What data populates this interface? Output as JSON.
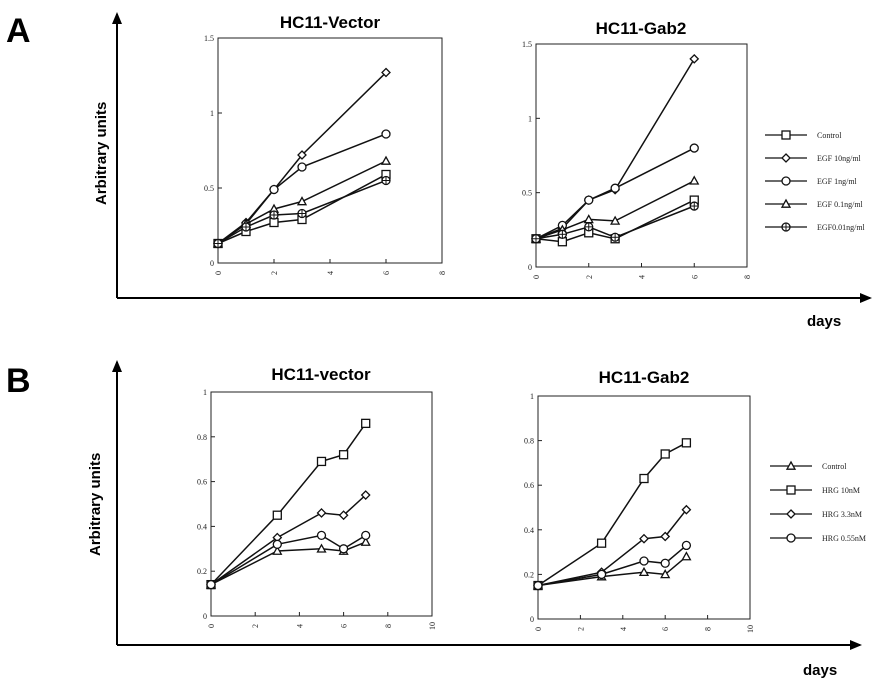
{
  "panels": [
    {
      "letter": "A",
      "ylabel": "Arbitrary  units",
      "xlabel": "days",
      "legend": [
        "Control",
        "EGF 10ng/ml",
        "EGF 1ng/ml",
        "EGF 0.1ng/ml",
        "EGF0.01ng/ml"
      ]
    },
    {
      "letter": "B",
      "ylabel": "Arbitrary  units",
      "xlabel": "days",
      "legend": [
        "Control",
        "HRG 10nM",
        "HRG 3.3nM",
        "HRG 0.55nM"
      ]
    }
  ],
  "chart_data": [
    {
      "type": "line",
      "title": "HC11-Vector",
      "xlim": [
        0,
        8
      ],
      "ylim": [
        0,
        1.5
      ],
      "xticks": [
        0,
        2,
        4,
        6,
        8
      ],
      "xtick_labels": [
        "0",
        "2",
        "4",
        "6",
        "8"
      ],
      "yticks": [
        0,
        0.5,
        1,
        1.5
      ],
      "ytick_labels": [
        "0",
        "0.5",
        "1",
        "1.5"
      ],
      "series": [
        {
          "name": "Control",
          "marker": "square",
          "x": [
            0,
            1,
            2,
            3,
            6
          ],
          "values": [
            0.13,
            0.21,
            0.27,
            0.29,
            0.59
          ]
        },
        {
          "name": "EGF 10ng/ml",
          "marker": "diamond",
          "x": [
            0,
            1,
            2,
            3,
            6
          ],
          "values": [
            0.13,
            0.27,
            0.49,
            0.72,
            1.27
          ]
        },
        {
          "name": "EGF 1ng/ml",
          "marker": "circle",
          "x": [
            0,
            1,
            2,
            3,
            6
          ],
          "values": [
            0.13,
            0.26,
            0.49,
            0.64,
            0.86
          ]
        },
        {
          "name": "EGF 0.1ng/ml",
          "marker": "triangle",
          "x": [
            0,
            1,
            2,
            3,
            6
          ],
          "values": [
            0.13,
            0.26,
            0.36,
            0.41,
            0.68
          ]
        },
        {
          "name": "EGF0.01ng/ml",
          "marker": "circle-cross",
          "x": [
            0,
            1,
            2,
            3,
            6
          ],
          "values": [
            0.13,
            0.24,
            0.32,
            0.33,
            0.55
          ]
        }
      ]
    },
    {
      "type": "line",
      "title": "HC11-Gab2",
      "xlim": [
        0,
        8
      ],
      "ylim": [
        0,
        1.5
      ],
      "xticks": [
        0,
        2,
        4,
        6,
        8
      ],
      "xtick_labels": [
        "0",
        "2",
        "4",
        "6",
        "8"
      ],
      "yticks": [
        0,
        0.5,
        1,
        1.5
      ],
      "ytick_labels": [
        "0",
        "0.5",
        "1",
        "1.5"
      ],
      "series": [
        {
          "name": "Control",
          "marker": "square",
          "x": [
            0,
            1,
            2,
            3,
            6
          ],
          "values": [
            0.19,
            0.17,
            0.23,
            0.19,
            0.45
          ]
        },
        {
          "name": "EGF 10ng/ml",
          "marker": "diamond",
          "x": [
            0,
            1,
            2,
            3,
            6
          ],
          "values": [
            0.19,
            0.26,
            0.45,
            0.52,
            1.4
          ]
        },
        {
          "name": "EGF 1ng/ml",
          "marker": "circle",
          "x": [
            0,
            1,
            2,
            3,
            6
          ],
          "values": [
            0.19,
            0.28,
            0.45,
            0.53,
            0.8
          ]
        },
        {
          "name": "EGF 0.1ng/ml",
          "marker": "triangle",
          "x": [
            0,
            1,
            2,
            3,
            6
          ],
          "values": [
            0.19,
            0.25,
            0.32,
            0.31,
            0.58
          ]
        },
        {
          "name": "EGF0.01ng/ml",
          "marker": "circle-cross",
          "x": [
            0,
            1,
            2,
            3,
            6
          ],
          "values": [
            0.19,
            0.22,
            0.27,
            0.2,
            0.41
          ]
        }
      ]
    },
    {
      "type": "line",
      "title": "HC11-vector",
      "xlim": [
        0,
        10
      ],
      "ylim": [
        0,
        1
      ],
      "xticks": [
        0,
        2,
        4,
        6,
        8,
        10
      ],
      "xtick_labels": [
        "0",
        "2",
        "4",
        "6",
        "8",
        "10"
      ],
      "yticks": [
        0,
        0.2,
        0.4,
        0.6,
        0.8,
        1
      ],
      "ytick_labels": [
        "0",
        "0.2",
        "0.4",
        "0.6",
        "0.8",
        "1"
      ],
      "series": [
        {
          "name": "Control",
          "marker": "triangle",
          "x": [
            0,
            3,
            5,
            6,
            7
          ],
          "values": [
            0.14,
            0.29,
            0.3,
            0.29,
            0.33
          ]
        },
        {
          "name": "HRG 10nM",
          "marker": "square",
          "x": [
            0,
            3,
            5,
            6,
            7
          ],
          "values": [
            0.14,
            0.45,
            0.69,
            0.72,
            0.86
          ]
        },
        {
          "name": "HRG 3.3nM",
          "marker": "diamond",
          "x": [
            0,
            3,
            5,
            6,
            7
          ],
          "values": [
            0.14,
            0.35,
            0.46,
            0.45,
            0.54
          ]
        },
        {
          "name": "HRG 0.55nM",
          "marker": "circle",
          "x": [
            0,
            3,
            5,
            6,
            7
          ],
          "values": [
            0.14,
            0.32,
            0.36,
            0.3,
            0.36
          ]
        }
      ]
    },
    {
      "type": "line",
      "title": "HC11-Gab2",
      "xlim": [
        0,
        10
      ],
      "ylim": [
        0,
        1
      ],
      "xticks": [
        0,
        2,
        4,
        6,
        8,
        10
      ],
      "xtick_labels": [
        "0",
        "2",
        "4",
        "6",
        "8",
        "10"
      ],
      "yticks": [
        0,
        0.2,
        0.4,
        0.6,
        0.8,
        1
      ],
      "ytick_labels": [
        "0",
        "0.2",
        "0.4",
        "0.6",
        "0.8",
        "1"
      ],
      "series": [
        {
          "name": "Control",
          "marker": "triangle",
          "x": [
            0,
            3,
            5,
            6,
            7
          ],
          "values": [
            0.15,
            0.19,
            0.21,
            0.2,
            0.28
          ]
        },
        {
          "name": "HRG 10nM",
          "marker": "square",
          "x": [
            0,
            3,
            5,
            6,
            7
          ],
          "values": [
            0.15,
            0.34,
            0.63,
            0.74,
            0.79
          ]
        },
        {
          "name": "HRG 3.3nM",
          "marker": "diamond",
          "x": [
            0,
            3,
            5,
            6,
            7
          ],
          "values": [
            0.15,
            0.21,
            0.36,
            0.37,
            0.49
          ]
        },
        {
          "name": "HRG 0.55nM",
          "marker": "circle",
          "x": [
            0,
            3,
            5,
            6,
            7
          ],
          "values": [
            0.15,
            0.2,
            0.26,
            0.25,
            0.33
          ]
        }
      ]
    }
  ]
}
